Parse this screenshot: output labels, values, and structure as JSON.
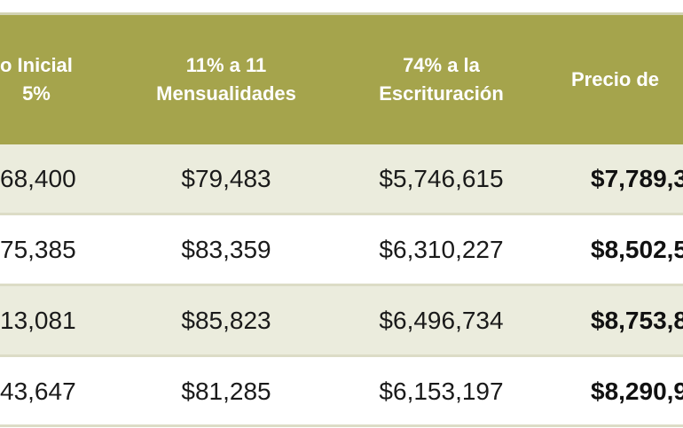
{
  "table": {
    "headers": [
      {
        "line1": "o Inicial",
        "line2": "5%"
      },
      {
        "line1": "11% a 11",
        "line2": "Mensualidades"
      },
      {
        "line1": "74% a la",
        "line2": "Escrituración"
      },
      {
        "line1": "Precio de",
        "line2": ""
      }
    ],
    "rows": [
      {
        "col1": "68,400",
        "col2": "$79,483",
        "col3": "$5,746,615",
        "col4": "$7,789,3"
      },
      {
        "col1": "75,385",
        "col2": "$83,359",
        "col3": "$6,310,227",
        "col4": "$8,502,5"
      },
      {
        "col1": "13,081",
        "col2": "$85,823",
        "col3": "$6,496,734",
        "col4": "$8,753,8"
      },
      {
        "col1": "43,647",
        "col2": "$81,285",
        "col3": "$6,153,197",
        "col4": "$8,290,9"
      }
    ]
  },
  "colors": {
    "header_bg": "#a5a44c",
    "row_alt_bg": "#ebecdd",
    "row_bg": "#ffffff",
    "separator": "#dcdcc6"
  }
}
